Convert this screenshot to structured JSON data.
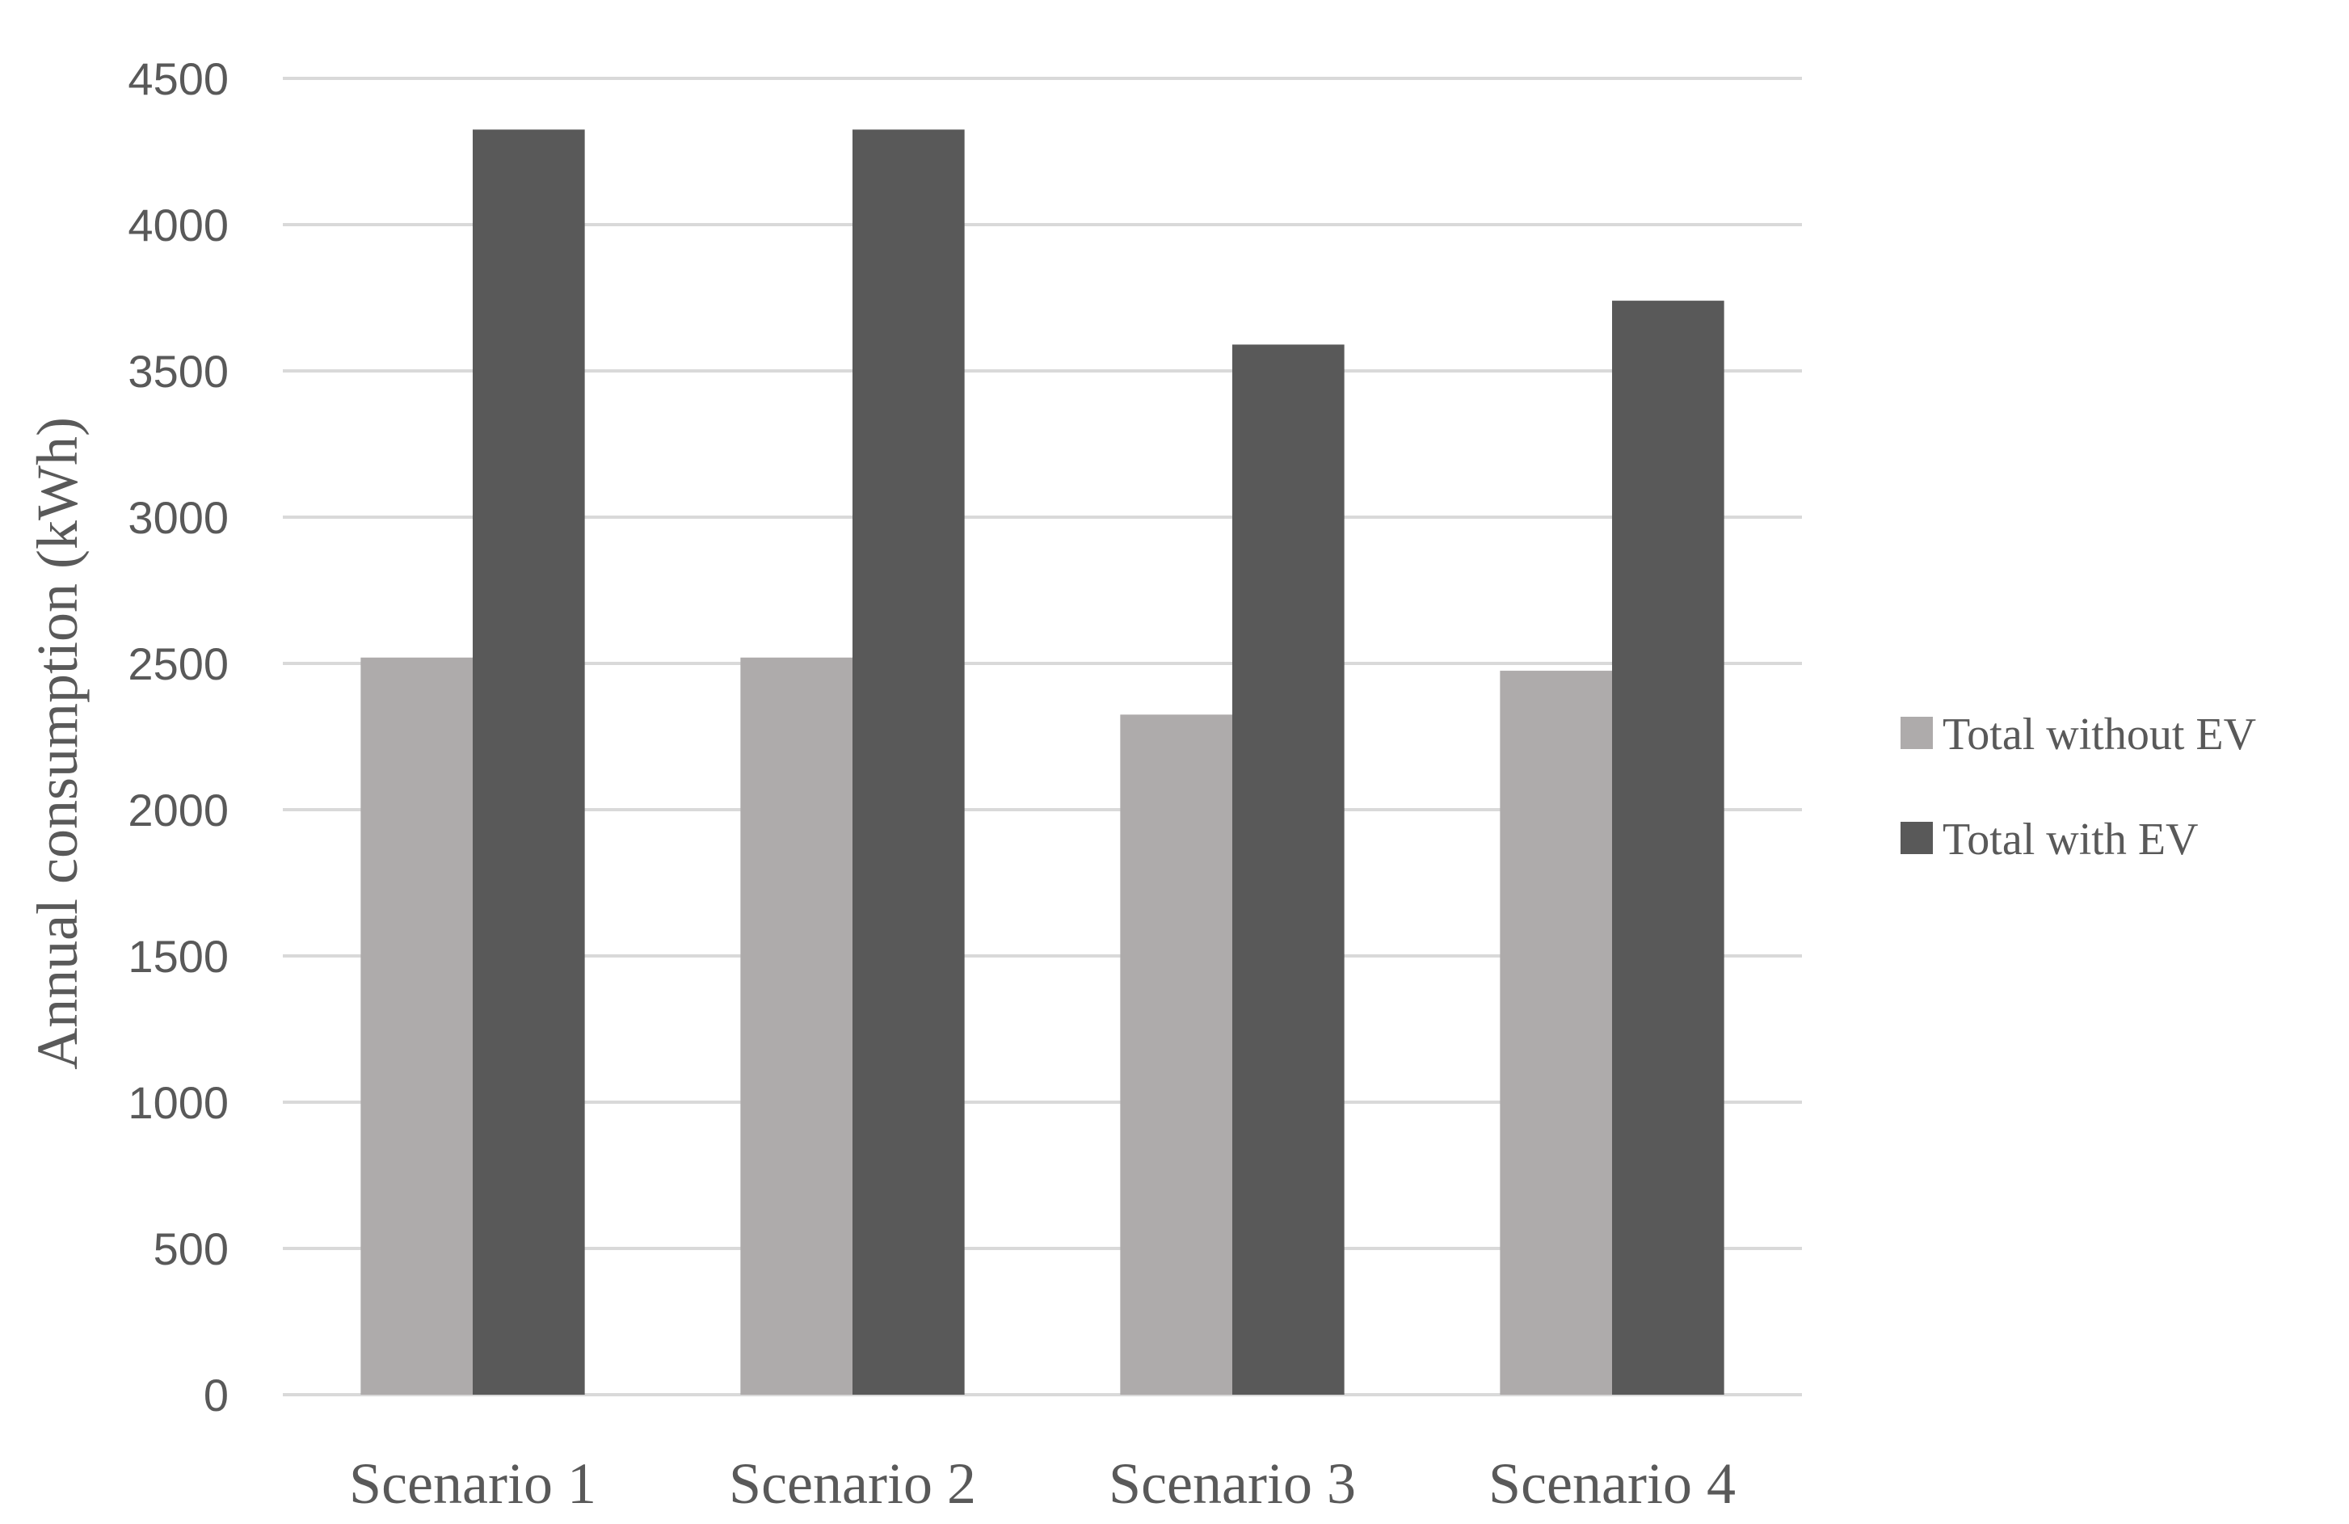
{
  "chart_data": {
    "type": "bar",
    "title": "",
    "xlabel": "",
    "ylabel": "Annual consumption (kWh)",
    "ylim": [
      0,
      4500
    ],
    "yticks": [
      "0",
      "500",
      "1000",
      "1500",
      "2000",
      "2500",
      "3000",
      "3500",
      "4000",
      "4500"
    ],
    "grid": true,
    "legend_position": "right",
    "categories": [
      "Scenario 1",
      "Scenario 2",
      "Scenario 3",
      "Scenario 4"
    ],
    "series": [
      {
        "name": "Total without EV",
        "color": "#aeabab",
        "values": [
          2520,
          2520,
          2325,
          2475
        ]
      },
      {
        "name": "Total with EV",
        "color": "#595959",
        "values": [
          4325,
          4325,
          3590,
          3740
        ]
      }
    ]
  }
}
